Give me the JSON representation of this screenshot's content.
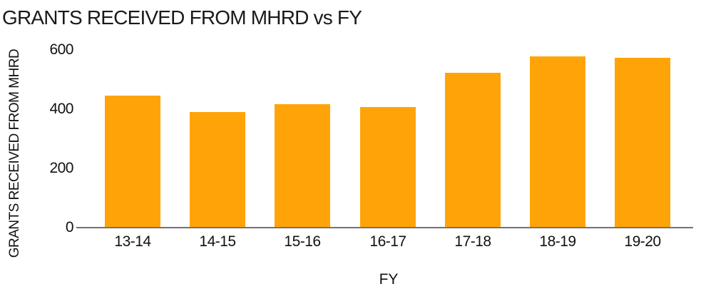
{
  "chart_data": {
    "type": "bar",
    "title": "GRANTS RECEIVED FROM MHRD vs FY",
    "categories": [
      "13-14",
      "14-15",
      "15-16",
      "16-17",
      "17-18",
      "18-19",
      "19-20"
    ],
    "values": [
      445,
      390,
      417,
      407,
      524,
      579,
      574
    ],
    "xlabel": "FY",
    "ylabel": "GRANTS RECEIVED FROM MHRD",
    "ylim": [
      0,
      600
    ],
    "yticks": [
      0,
      200,
      400,
      600
    ],
    "grid": false,
    "legend": false,
    "bar_color": "#FFA408"
  },
  "colors": {
    "bar": "#FFA408",
    "text": "#111111",
    "title_text": "#1A1A1A",
    "axis_line": "#737373",
    "background": "#FFFFFF"
  }
}
